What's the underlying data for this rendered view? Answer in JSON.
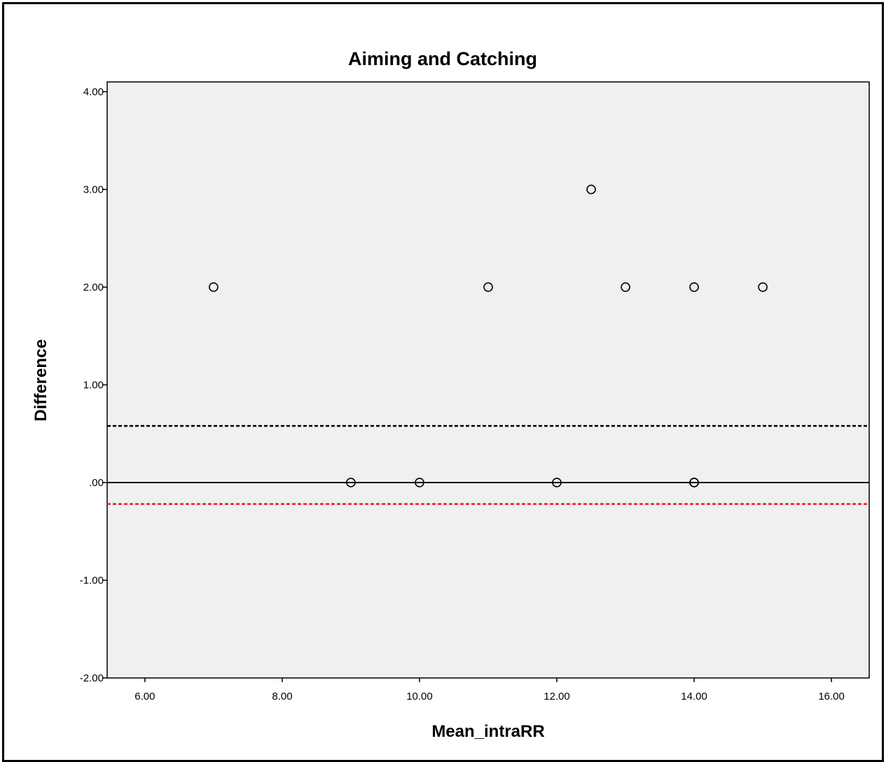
{
  "chart_data": {
    "type": "scatter",
    "title": "Aiming and Catching",
    "xlabel": "Mean_intraRR",
    "ylabel": "Difference",
    "xlim": [
      5.45,
      16.55
    ],
    "ylim": [
      -2.0,
      4.1
    ],
    "x_ticks": [
      {
        "value": 6,
        "label": "6.00"
      },
      {
        "value": 8,
        "label": "8.00"
      },
      {
        "value": 10,
        "label": "10.00"
      },
      {
        "value": 12,
        "label": "12.00"
      },
      {
        "value": 14,
        "label": "14.00"
      },
      {
        "value": 16,
        "label": "16.00"
      }
    ],
    "y_ticks": [
      {
        "value": 4,
        "label": "4.00"
      },
      {
        "value": 3,
        "label": "3.00"
      },
      {
        "value": 2,
        "label": "2.00"
      },
      {
        "value": 1,
        "label": "1.00"
      },
      {
        "value": 0,
        "label": ".00"
      },
      {
        "value": -1,
        "label": "-1.00"
      },
      {
        "value": -2,
        "label": "-2.00"
      }
    ],
    "points": [
      {
        "x": 7,
        "y": 2
      },
      {
        "x": 9,
        "y": 0
      },
      {
        "x": 10,
        "y": 0
      },
      {
        "x": 11,
        "y": 2
      },
      {
        "x": 12,
        "y": 0
      },
      {
        "x": 12.5,
        "y": 3
      },
      {
        "x": 13,
        "y": 2
      },
      {
        "x": 14,
        "y": 2
      },
      {
        "x": 14,
        "y": 0
      },
      {
        "x": 14,
        "y": 0
      },
      {
        "x": 15,
        "y": 2
      }
    ],
    "reference_lines": [
      {
        "y": 0.58,
        "style": "dashed",
        "color": "#000000"
      },
      {
        "y": 0.0,
        "style": "solid",
        "color": "#000000"
      },
      {
        "y": -0.22,
        "style": "dashed",
        "color": "#e8211e"
      }
    ],
    "grid": false,
    "plot_background": "#f0f0f0",
    "marker": "open-circle"
  }
}
